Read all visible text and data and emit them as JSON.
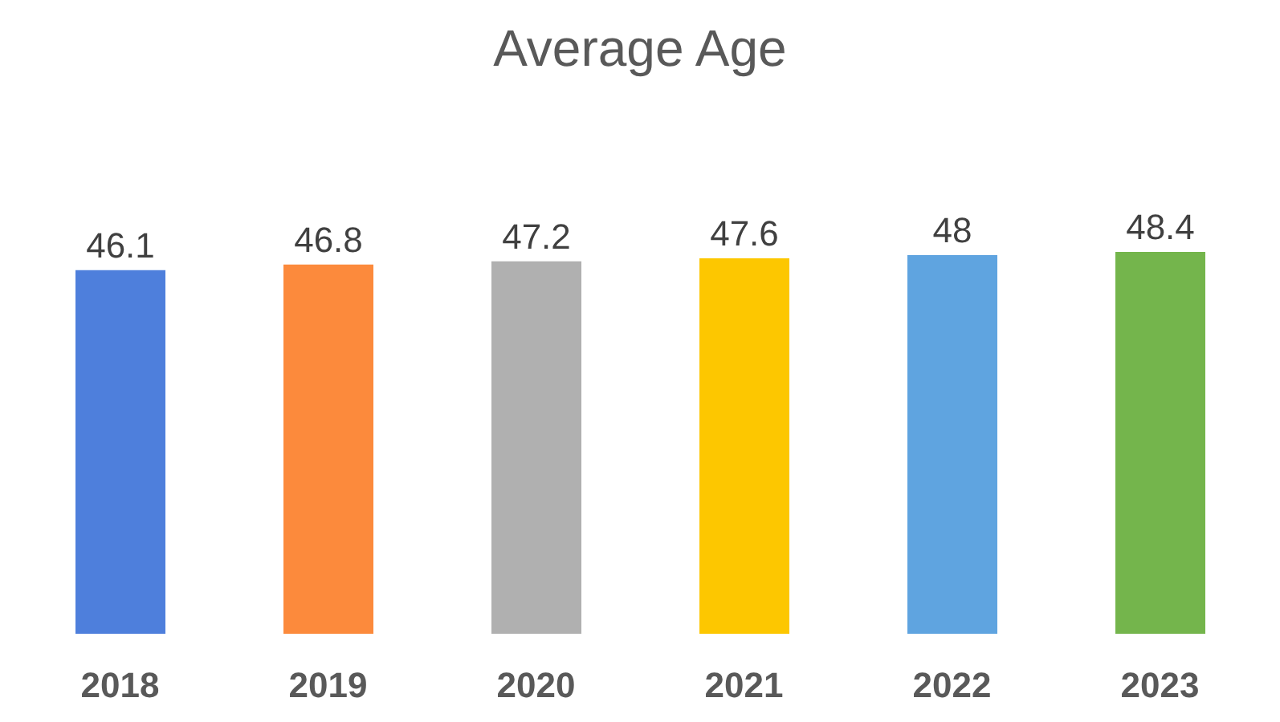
{
  "chart_data": {
    "type": "bar",
    "title": "Average Age",
    "categories": [
      "2018",
      "2019",
      "2020",
      "2021",
      "2022",
      "2023"
    ],
    "values": [
      46.1,
      46.8,
      47.2,
      47.6,
      48,
      48.4
    ],
    "colors": [
      "#4e7fdc",
      "#fc8a3c",
      "#b0b0b0",
      "#fdc700",
      "#5fa4e0",
      "#74b54c"
    ],
    "data_labels": true,
    "grid": false,
    "legend": false
  }
}
